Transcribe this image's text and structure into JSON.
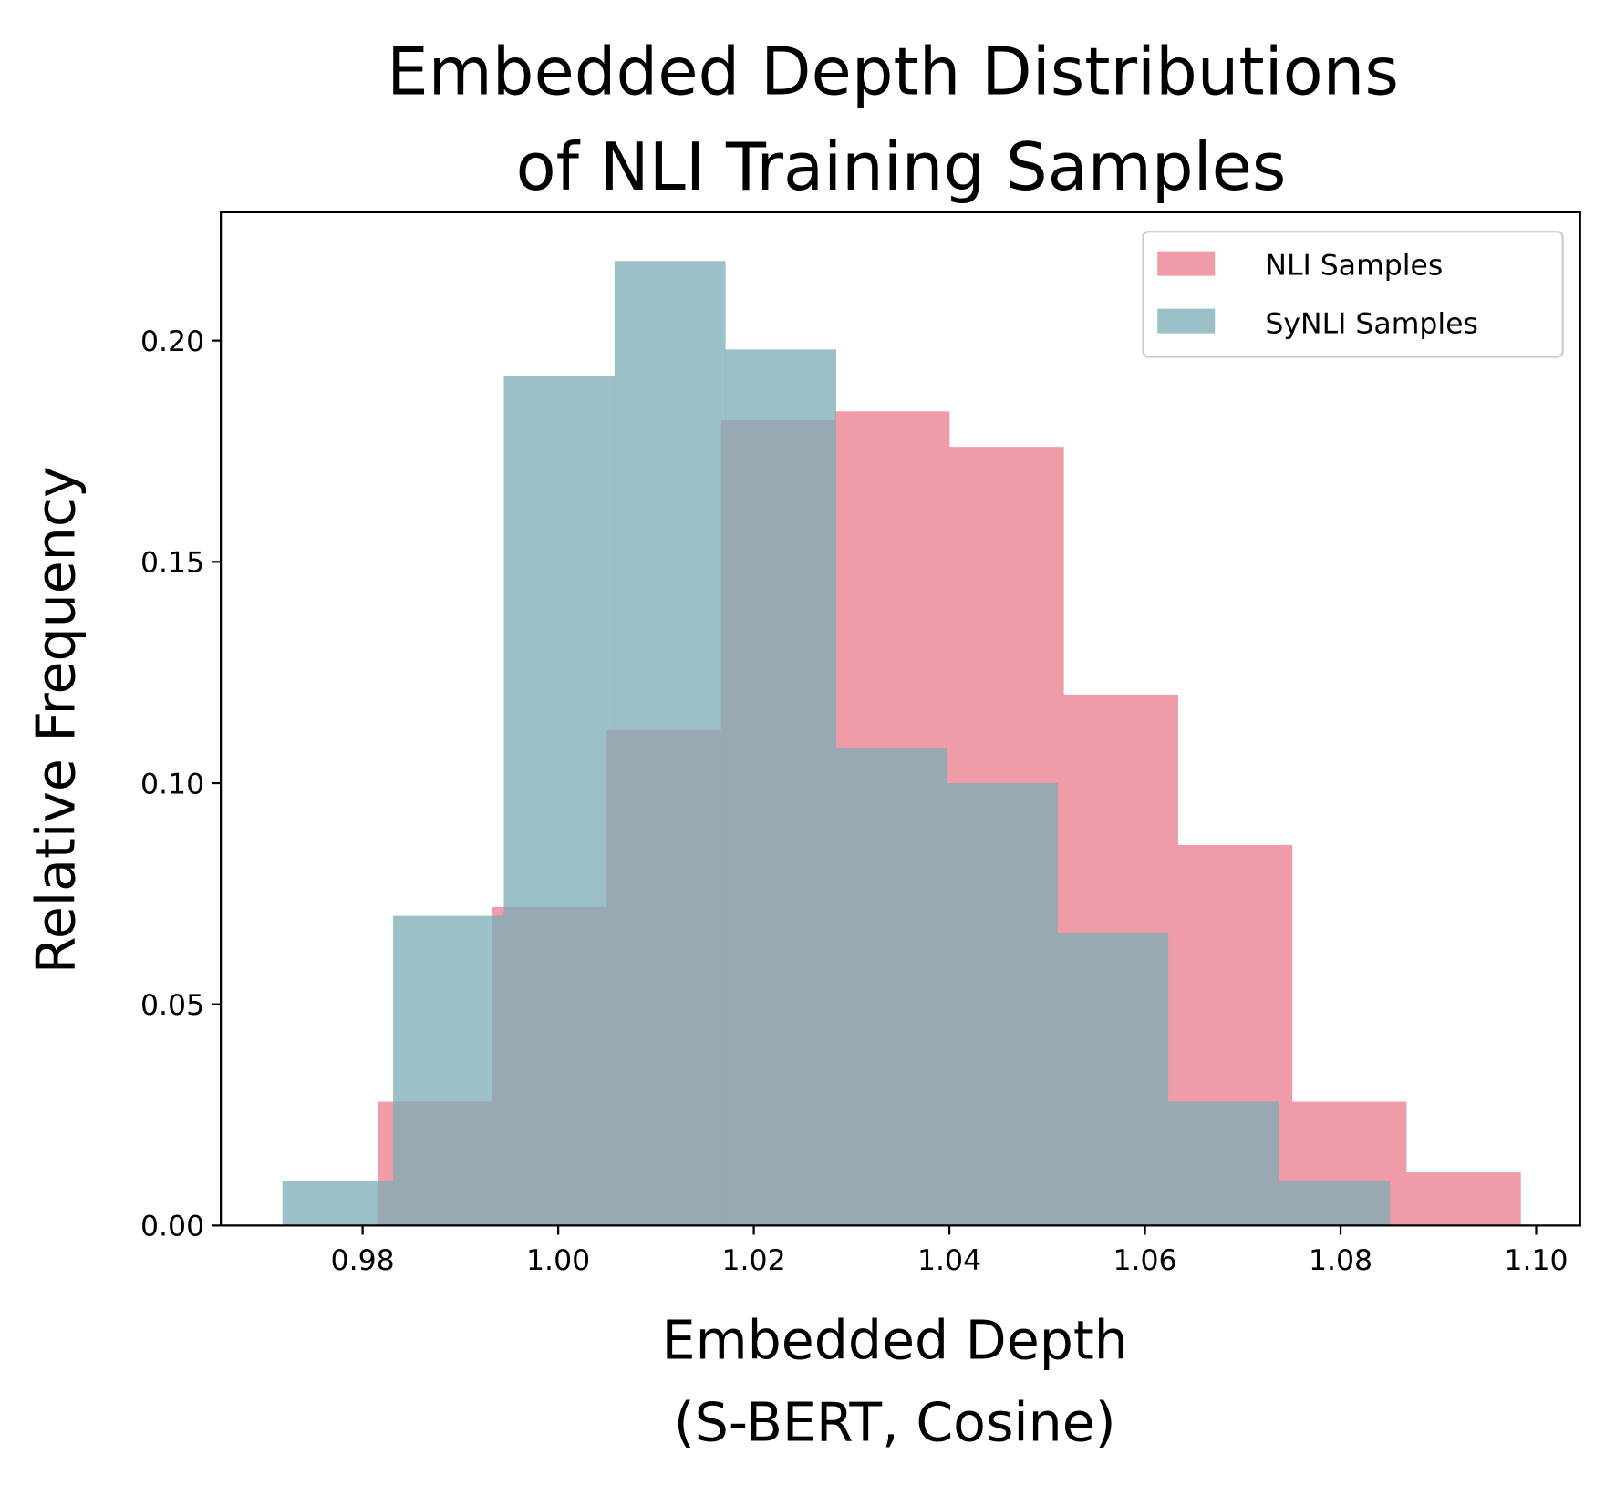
{
  "chart_data": {
    "type": "histogram",
    "title": [
      "Embedded Depth Distributions",
      "of NLI Training Samples"
    ],
    "xlabel": [
      "Embedded Depth",
      "(S-BERT, Cosine)"
    ],
    "ylabel": "Relative Frequency",
    "xlim": [
      0.9655,
      1.1045
    ],
    "ylim": [
      0,
      0.229
    ],
    "xticks": [
      "0.98",
      "1.00",
      "1.02",
      "1.04",
      "1.06",
      "1.08",
      "1.10"
    ],
    "yticks": [
      "0.00",
      "0.05",
      "0.10",
      "0.15",
      "0.20"
    ],
    "grid": false,
    "legend_position": "top-right",
    "series": [
      {
        "name": "NLI Samples",
        "color": "#f09ba8",
        "bin_start": 0.9816,
        "bin_end": 1.0984,
        "values": [
          0.028,
          0.072,
          0.112,
          0.182,
          0.184,
          0.176,
          0.12,
          0.086,
          0.028,
          0.012
        ]
      },
      {
        "name": "SyNLI Samples",
        "color": "#7dadb6",
        "opacity": 0.77,
        "bin_start": 0.9718,
        "bin_end": 1.085,
        "values": [
          0.01,
          0.07,
          0.192,
          0.218,
          0.198,
          0.108,
          0.1,
          0.066,
          0.028,
          0.01
        ]
      }
    ]
  }
}
